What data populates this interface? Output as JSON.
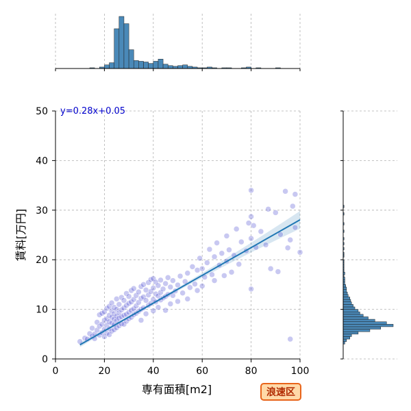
{
  "chart_data": {
    "type": "scatter",
    "xlabel": "専有面積[m2]",
    "ylabel": "賃料[万円]",
    "xlim": [
      0,
      100
    ],
    "ylim": [
      0,
      50
    ],
    "x_ticks": [
      "0",
      "20",
      "40",
      "60",
      "80",
      "100"
    ],
    "y_ticks": [
      "0",
      "10",
      "20",
      "30",
      "40",
      "50"
    ],
    "grid": true,
    "regression": {
      "equation": "y=0.28x+0.05",
      "slope": 0.28,
      "intercept": 0.05,
      "x_range": [
        10,
        100
      ]
    },
    "marginal_x_hist": {
      "bin_width": 2,
      "bins_start": 10,
      "counts": [
        0,
        0,
        1,
        0,
        2,
        5,
        8,
        55,
        72,
        62,
        26,
        11,
        10,
        9,
        7,
        10,
        13,
        6,
        4,
        3,
        4,
        5,
        3,
        2,
        1,
        1,
        2,
        1,
        0,
        1,
        1,
        0,
        0,
        1,
        2,
        0,
        1,
        0,
        0,
        0,
        1,
        0,
        0,
        0
      ]
    },
    "marginal_y_hist": {
      "bin_width": 0.5,
      "bins_start": 3,
      "counts": [
        2,
        4,
        8,
        10,
        18,
        32,
        45,
        60,
        52,
        38,
        30,
        24,
        20,
        18,
        14,
        12,
        10,
        9,
        8,
        6,
        5,
        4,
        4,
        3,
        2,
        2,
        2,
        1,
        2,
        1,
        1,
        1,
        1,
        1,
        0,
        1,
        1,
        0,
        1,
        0,
        1,
        0,
        1,
        0,
        0,
        1,
        0,
        0,
        1,
        0,
        0,
        0,
        1,
        0,
        0,
        1
      ]
    },
    "points": [
      [
        10,
        3.5
      ],
      [
        12,
        4.2
      ],
      [
        13,
        4.0
      ],
      [
        14,
        5.1
      ],
      [
        15,
        4.6
      ],
      [
        15,
        6.2
      ],
      [
        16,
        5.0
      ],
      [
        16,
        4.1
      ],
      [
        17,
        5.8
      ],
      [
        17,
        7.4
      ],
      [
        18,
        4.8
      ],
      [
        18,
        6.6
      ],
      [
        18,
        8.9
      ],
      [
        19,
        5.3
      ],
      [
        19,
        7.0
      ],
      [
        19,
        9.2
      ],
      [
        20,
        4.5
      ],
      [
        20,
        6.0
      ],
      [
        20,
        7.8
      ],
      [
        20,
        9.5
      ],
      [
        21,
        5.2
      ],
      [
        21,
        6.8
      ],
      [
        21,
        8.1
      ],
      [
        21,
        10.2
      ],
      [
        22,
        4.9
      ],
      [
        22,
        6.1
      ],
      [
        22,
        7.5
      ],
      [
        22,
        8.8
      ],
      [
        22,
        10.6
      ],
      [
        23,
        5.6
      ],
      [
        23,
        7.2
      ],
      [
        23,
        8.4
      ],
      [
        23,
        9.7
      ],
      [
        23,
        11.3
      ],
      [
        24,
        5.9
      ],
      [
        24,
        6.9
      ],
      [
        24,
        8.0
      ],
      [
        24,
        9.1
      ],
      [
        24,
        10.4
      ],
      [
        25,
        6.3
      ],
      [
        25,
        7.7
      ],
      [
        25,
        8.6
      ],
      [
        25,
        10.0
      ],
      [
        25,
        12.1
      ],
      [
        26,
        6.7
      ],
      [
        26,
        8.2
      ],
      [
        26,
        9.3
      ],
      [
        26,
        11.0
      ],
      [
        27,
        7.1
      ],
      [
        27,
        8.5
      ],
      [
        27,
        9.9
      ],
      [
        27,
        12.4
      ],
      [
        28,
        7.0
      ],
      [
        28,
        8.8
      ],
      [
        28,
        10.3
      ],
      [
        28,
        11.8
      ],
      [
        29,
        7.6
      ],
      [
        29,
        9.0
      ],
      [
        29,
        10.8
      ],
      [
        29,
        13.2
      ],
      [
        30,
        8.1
      ],
      [
        30,
        9.4
      ],
      [
        30,
        11.2
      ],
      [
        30,
        12.6
      ],
      [
        31,
        8.4
      ],
      [
        31,
        9.8
      ],
      [
        31,
        11.5
      ],
      [
        31,
        13.8
      ],
      [
        32,
        8.9
      ],
      [
        32,
        10.1
      ],
      [
        32,
        12.0
      ],
      [
        32,
        14.2
      ],
      [
        33,
        9.2
      ],
      [
        33,
        10.7
      ],
      [
        33,
        12.8
      ],
      [
        34,
        9.6
      ],
      [
        34,
        11.4
      ],
      [
        34,
        13.5
      ],
      [
        35,
        7.8
      ],
      [
        35,
        10.0
      ],
      [
        35,
        12.2
      ],
      [
        35,
        14.6
      ],
      [
        36,
        10.3
      ],
      [
        36,
        12.5
      ],
      [
        36,
        15.0
      ],
      [
        37,
        9.1
      ],
      [
        37,
        11.8
      ],
      [
        37,
        13.9
      ],
      [
        38,
        10.8
      ],
      [
        38,
        12.9
      ],
      [
        38,
        15.4
      ],
      [
        39,
        11.2
      ],
      [
        39,
        13.6
      ],
      [
        39,
        16.0
      ],
      [
        40,
        9.7
      ],
      [
        40,
        12.0
      ],
      [
        40,
        14.3
      ],
      [
        40,
        16.2
      ],
      [
        41,
        11.5
      ],
      [
        41,
        13.1
      ],
      [
        41,
        15.5
      ],
      [
        42,
        10.4
      ],
      [
        42,
        12.7
      ],
      [
        42,
        14.8
      ],
      [
        43,
        11.9
      ],
      [
        43,
        13.4
      ],
      [
        43,
        15.9
      ],
      [
        44,
        12.3
      ],
      [
        44,
        14.1
      ],
      [
        45,
        9.8
      ],
      [
        45,
        12.6
      ],
      [
        45,
        15.2
      ],
      [
        46,
        13.0
      ],
      [
        46,
        16.4
      ],
      [
        47,
        11.1
      ],
      [
        47,
        14.5
      ],
      [
        48,
        12.8
      ],
      [
        48,
        15.8
      ],
      [
        49,
        13.7
      ],
      [
        50,
        11.6
      ],
      [
        50,
        14.9
      ],
      [
        51,
        16.7
      ],
      [
        52,
        13.3
      ],
      [
        53,
        15.6
      ],
      [
        54,
        12.1
      ],
      [
        54,
        17.3
      ],
      [
        55,
        14.4
      ],
      [
        56,
        18.6
      ],
      [
        57,
        15.1
      ],
      [
        58,
        13.8
      ],
      [
        58,
        17.9
      ],
      [
        59,
        20.3
      ],
      [
        60,
        14.7
      ],
      [
        60,
        18.2
      ],
      [
        61,
        16.5
      ],
      [
        62,
        19.4
      ],
      [
        63,
        22.1
      ],
      [
        64,
        17.0
      ],
      [
        65,
        15.8
      ],
      [
        65,
        20.6
      ],
      [
        66,
        23.4
      ],
      [
        67,
        18.9
      ],
      [
        68,
        21.3
      ],
      [
        69,
        16.8
      ],
      [
        70,
        19.7
      ],
      [
        70,
        24.8
      ],
      [
        71,
        22.0
      ],
      [
        72,
        17.5
      ],
      [
        73,
        20.9
      ],
      [
        74,
        26.2
      ],
      [
        75,
        19.1
      ],
      [
        76,
        23.6
      ],
      [
        78,
        21.8
      ],
      [
        79,
        27.4
      ],
      [
        80,
        14.1
      ],
      [
        80,
        24.3
      ],
      [
        80,
        28.7
      ],
      [
        80,
        34.0
      ],
      [
        81,
        26.9
      ],
      [
        82,
        22.5
      ],
      [
        84,
        25.7
      ],
      [
        86,
        23.0
      ],
      [
        87,
        30.2
      ],
      [
        88,
        18.2
      ],
      [
        90,
        29.5
      ],
      [
        91,
        17.6
      ],
      [
        92,
        25.1
      ],
      [
        94,
        33.8
      ],
      [
        95,
        22.4
      ],
      [
        96,
        4.0
      ],
      [
        96,
        24.0
      ],
      [
        97,
        30.8
      ],
      [
        98,
        33.2
      ],
      [
        98,
        26.5
      ],
      [
        100,
        21.5
      ]
    ]
  },
  "badge": {
    "label": "浪速区"
  }
}
